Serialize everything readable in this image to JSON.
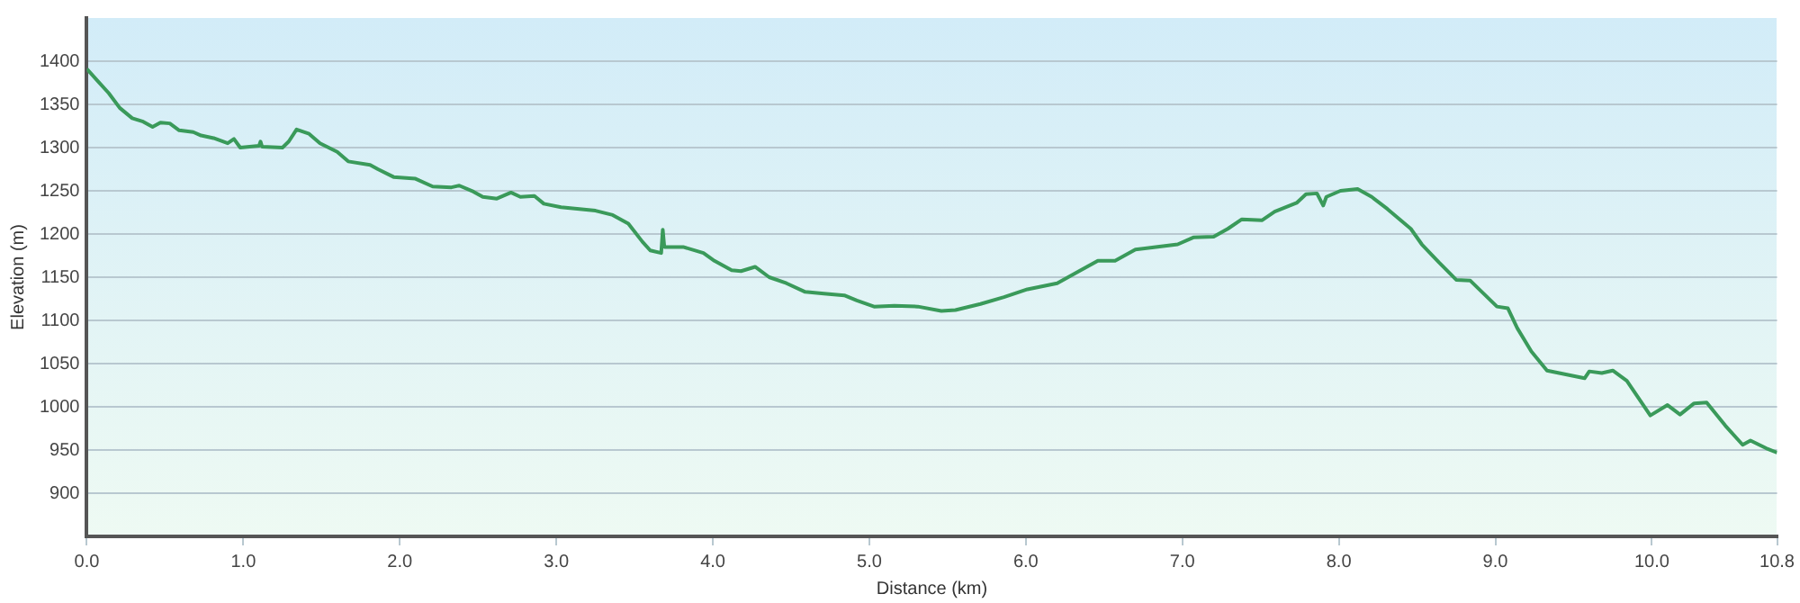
{
  "chart_data": {
    "type": "line",
    "xlabel": "Distance (km)",
    "ylabel": "Elevation (m)",
    "xlim": [
      0,
      10.8
    ],
    "ylim": [
      850,
      1450
    ],
    "xticks": [
      {
        "value": 0,
        "label": "0.0"
      },
      {
        "value": 1,
        "label": "1.0"
      },
      {
        "value": 2,
        "label": "2.0"
      },
      {
        "value": 3,
        "label": "3.0"
      },
      {
        "value": 4,
        "label": "4.0"
      },
      {
        "value": 5,
        "label": "5.0"
      },
      {
        "value": 6,
        "label": "6.0"
      },
      {
        "value": 7,
        "label": "7.0"
      },
      {
        "value": 8,
        "label": "8.0"
      },
      {
        "value": 9,
        "label": "9.0"
      },
      {
        "value": 10,
        "label": "10.0"
      },
      {
        "value": 10.8,
        "label": "10.8"
      }
    ],
    "yticks": [
      900,
      950,
      1000,
      1050,
      1100,
      1150,
      1200,
      1250,
      1300,
      1350,
      1400
    ],
    "grid": "y",
    "legend": false,
    "marker": "none",
    "series": [
      {
        "color": "#3a9a5a",
        "x": [
          0,
          0.07,
          0.14,
          0.21,
          0.29,
          0.36,
          0.42,
          0.47,
          0.53,
          0.59,
          0.68,
          0.73,
          0.81,
          0.9,
          0.94,
          0.98,
          1.1,
          1.11,
          1.12,
          1.25,
          1.29,
          1.34,
          1.42,
          1.49,
          1.6,
          1.67,
          1.81,
          1.86,
          1.96,
          2.1,
          2.21,
          2.33,
          2.38,
          2.47,
          2.53,
          2.62,
          2.71,
          2.77,
          2.86,
          2.92,
          3.03,
          3.25,
          3.36,
          3.46,
          3.55,
          3.6,
          3.67,
          3.68,
          3.69,
          3.81,
          3.94,
          4.01,
          4.12,
          4.18,
          4.27,
          4.36,
          4.47,
          4.59,
          4.71,
          4.84,
          4.92,
          5.03,
          5.16,
          5.31,
          5.46,
          5.55,
          5.71,
          5.86,
          6.01,
          6.2,
          6.34,
          6.46,
          6.57,
          6.7,
          6.83,
          6.97,
          7.07,
          7.2,
          7.29,
          7.38,
          7.51,
          7.59,
          7.73,
          7.79,
          7.86,
          7.9,
          7.92,
          8.01,
          8.12,
          8.21,
          8.31,
          8.46,
          8.53,
          8.64,
          8.75,
          8.84,
          9.01,
          9.08,
          9.14,
          9.23,
          9.33,
          9.57,
          9.6,
          9.68,
          9.75,
          9.84,
          9.99,
          10.1,
          10.18,
          10.27,
          10.35,
          10.47,
          10.58,
          10.63,
          10.73,
          10.8
        ],
        "values": [
          1391,
          1377,
          1363,
          1346,
          1334,
          1330,
          1324,
          1329,
          1328,
          1320,
          1318,
          1314,
          1311,
          1305,
          1310,
          1300,
          1302,
          1307,
          1301,
          1300,
          1307,
          1321,
          1316,
          1305,
          1295,
          1284,
          1280,
          1275,
          1266,
          1264,
          1255,
          1254,
          1256,
          1249,
          1243,
          1241,
          1248,
          1243,
          1244,
          1235,
          1231,
          1227,
          1222,
          1212,
          1191,
          1181,
          1178,
          1205,
          1185,
          1185,
          1178,
          1169,
          1158,
          1157,
          1162,
          1150,
          1143,
          1133,
          1131,
          1129,
          1123,
          1116,
          1117,
          1116,
          1111,
          1112,
          1119,
          1127,
          1136,
          1143,
          1157,
          1169,
          1169,
          1182,
          1185,
          1188,
          1196,
          1197,
          1206,
          1217,
          1216,
          1226,
          1236,
          1246,
          1247,
          1233,
          1243,
          1250,
          1252,
          1243,
          1229,
          1206,
          1188,
          1167,
          1147,
          1146,
          1116,
          1114,
          1091,
          1064,
          1042,
          1033,
          1041,
          1039,
          1042,
          1030,
          990,
          1002,
          991,
          1004,
          1005,
          978,
          956,
          961,
          952,
          947
        ]
      }
    ]
  }
}
